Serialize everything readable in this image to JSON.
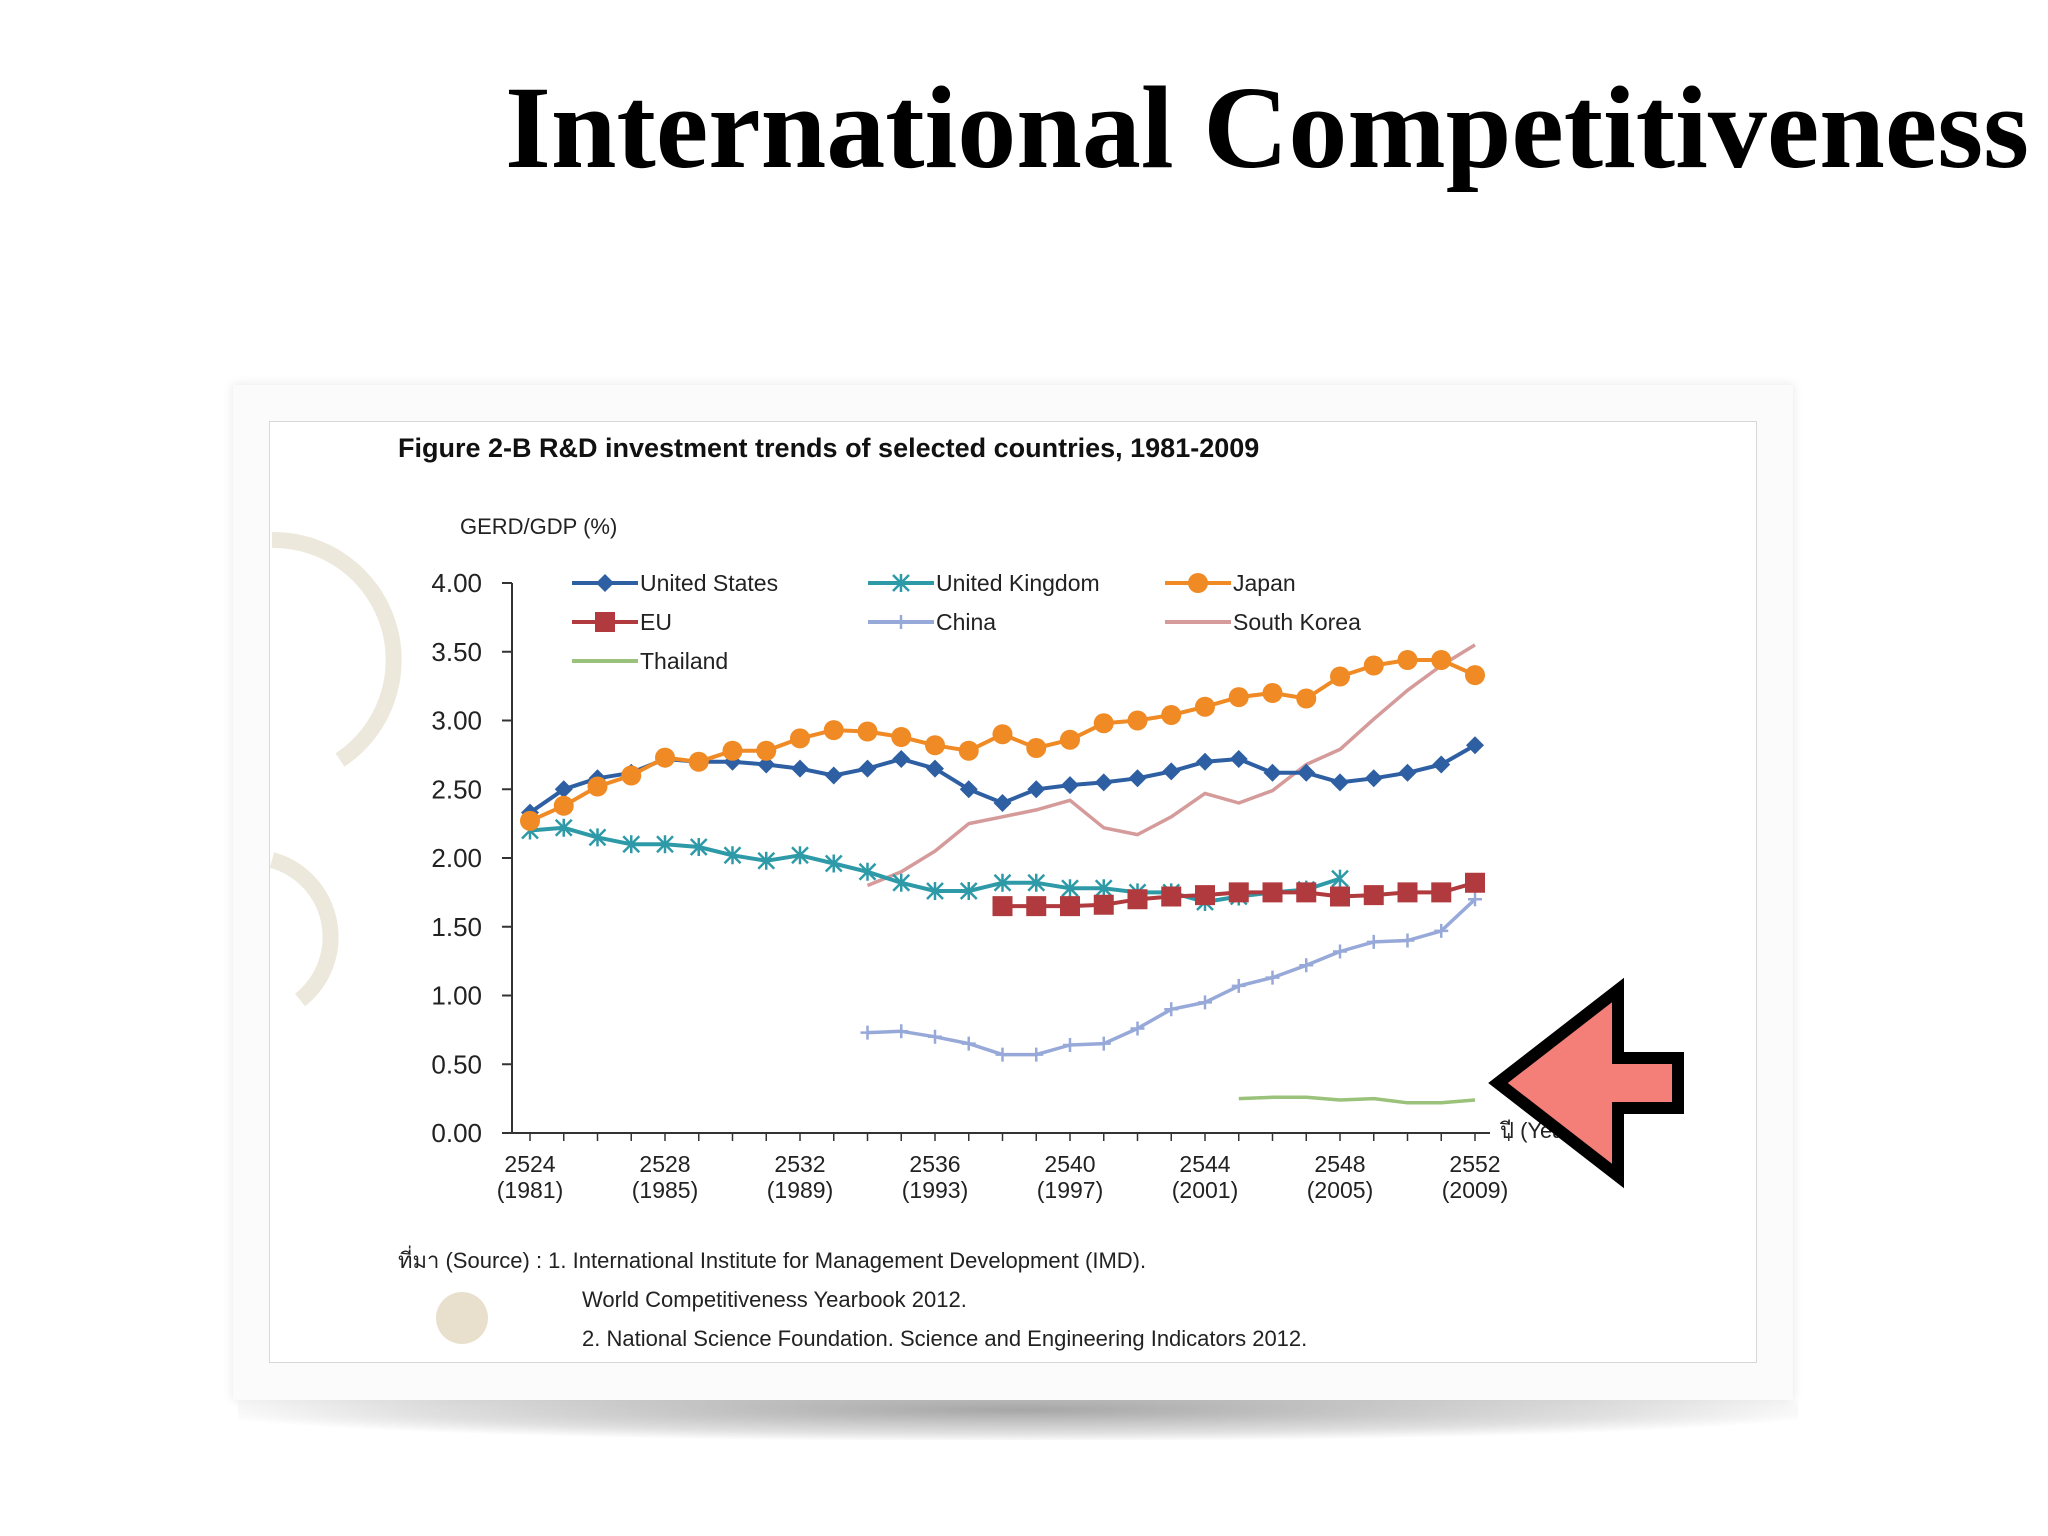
{
  "slide": {
    "title": "International Competitiveness"
  },
  "figure": {
    "caption": "Figure 2-B R&D investment trends of selected countries, 1981-2009",
    "source_lines": [
      "ที่มา (Source) : 1. International Institute for Management Development (IMD).",
      "World Competitiveness Yearbook 2012.",
      "2. National Science Foundation. Science and Engineering Indicators 2012."
    ]
  },
  "chart_data": {
    "type": "line",
    "title": "",
    "xlabel": "ปี (Year)",
    "ylabel": "GERD/GDP (%)",
    "xlim": [
      1981,
      2010
    ],
    "ylim": [
      0,
      4
    ],
    "y_ticks": [
      "0.00",
      "0.50",
      "1.00",
      "1.50",
      "2.00",
      "2.50",
      "3.00",
      "3.50",
      "4.00"
    ],
    "x_ticks": [
      {
        "year": 1981,
        "line1": "2524",
        "line2": "(1981)"
      },
      {
        "year": 1985,
        "line1": "2528",
        "line2": "(1985)"
      },
      {
        "year": 1989,
        "line1": "2532",
        "line2": "(1989)"
      },
      {
        "year": 1993,
        "line1": "2536",
        "line2": "(1993)"
      },
      {
        "year": 1997,
        "line1": "2540",
        "line2": "(1997)"
      },
      {
        "year": 2001,
        "line1": "2544",
        "line2": "(2001)"
      },
      {
        "year": 2005,
        "line1": "2548",
        "line2": "(2005)"
      },
      {
        "year": 2009,
        "line1": "2552",
        "line2": "(2009)"
      }
    ],
    "legend_position": "top-left",
    "grid": false,
    "series": [
      {
        "name": "United States",
        "color": "#2e5fa3",
        "marker": "diamond",
        "x": [
          1981,
          1982,
          1983,
          1984,
          1985,
          1986,
          1987,
          1988,
          1989,
          1990,
          1991,
          1992,
          1993,
          1994,
          1995,
          1996,
          1997,
          1998,
          1999,
          2000,
          2001,
          2002,
          2003,
          2004,
          2005,
          2006,
          2007,
          2008,
          2009
        ],
        "y": [
          2.33,
          2.5,
          2.58,
          2.62,
          2.72,
          2.7,
          2.7,
          2.68,
          2.65,
          2.6,
          2.65,
          2.72,
          2.65,
          2.5,
          2.4,
          2.5,
          2.53,
          2.55,
          2.58,
          2.63,
          2.7,
          2.72,
          2.62,
          2.62,
          2.55,
          2.58,
          2.62,
          2.68,
          2.82
        ]
      },
      {
        "name": "United Kingdom",
        "color": "#2e9aa8",
        "marker": "star",
        "x": [
          1981,
          1982,
          1983,
          1984,
          1985,
          1986,
          1987,
          1988,
          1989,
          1990,
          1991,
          1992,
          1993,
          1994,
          1995,
          1996,
          1997,
          1998,
          1999,
          2000,
          2001,
          2002,
          2003,
          2004,
          2005
        ],
        "y": [
          2.2,
          2.22,
          2.15,
          2.1,
          2.1,
          2.08,
          2.02,
          1.98,
          2.02,
          1.96,
          1.9,
          1.82,
          1.76,
          1.76,
          1.82,
          1.82,
          1.78,
          1.78,
          1.75,
          1.75,
          1.68,
          1.72,
          1.75,
          1.77,
          1.85
        ]
      },
      {
        "name": "Japan",
        "color": "#f08a24",
        "marker": "circle",
        "x": [
          1981,
          1982,
          1983,
          1984,
          1985,
          1986,
          1987,
          1988,
          1989,
          1990,
          1991,
          1992,
          1993,
          1994,
          1995,
          1996,
          1997,
          1998,
          1999,
          2000,
          2001,
          2002,
          2003,
          2004,
          2005,
          2006,
          2007,
          2008,
          2009
        ],
        "y": [
          2.27,
          2.38,
          2.52,
          2.6,
          2.73,
          2.7,
          2.78,
          2.78,
          2.87,
          2.93,
          2.92,
          2.88,
          2.82,
          2.78,
          2.9,
          2.8,
          2.86,
          2.98,
          3.0,
          3.04,
          3.1,
          3.17,
          3.2,
          3.16,
          3.32,
          3.4,
          3.44,
          3.44,
          3.33
        ]
      },
      {
        "name": "EU",
        "color": "#b03a3e",
        "marker": "square",
        "x": [
          1995,
          1996,
          1997,
          1998,
          1999,
          2000,
          2001,
          2002,
          2003,
          2004,
          2005,
          2006,
          2007,
          2008,
          2009
        ],
        "y": [
          1.65,
          1.65,
          1.65,
          1.66,
          1.7,
          1.72,
          1.73,
          1.75,
          1.75,
          1.75,
          1.72,
          1.73,
          1.75,
          1.75,
          1.82
        ]
      },
      {
        "name": "China",
        "color": "#97a9d9",
        "marker": "plus",
        "x": [
          1991,
          1992,
          1993,
          1994,
          1995,
          1996,
          1997,
          1998,
          1999,
          2000,
          2001,
          2002,
          2003,
          2004,
          2005,
          2006,
          2007,
          2008,
          2009
        ],
        "y": [
          0.73,
          0.74,
          0.7,
          0.65,
          0.57,
          0.57,
          0.64,
          0.65,
          0.76,
          0.9,
          0.95,
          1.07,
          1.13,
          1.22,
          1.32,
          1.39,
          1.4,
          1.47,
          1.7
        ]
      },
      {
        "name": "South Korea",
        "color": "#d59a9a",
        "marker": "none",
        "x": [
          1991,
          1992,
          1993,
          1994,
          1995,
          1996,
          1997,
          1998,
          1999,
          2000,
          2001,
          2002,
          2003,
          2004,
          2005,
          2006,
          2007,
          2008,
          2009
        ],
        "y": [
          1.8,
          1.9,
          2.05,
          2.25,
          2.3,
          2.35,
          2.42,
          2.22,
          2.17,
          2.3,
          2.47,
          2.4,
          2.49,
          2.68,
          2.79,
          3.01,
          3.22,
          3.4,
          3.55
        ]
      },
      {
        "name": "Thailand",
        "color": "#9ac27a",
        "marker": "none",
        "x": [
          2002,
          2003,
          2004,
          2005,
          2006,
          2007,
          2008,
          2009
        ],
        "y": [
          0.25,
          0.26,
          0.26,
          0.24,
          0.25,
          0.22,
          0.22,
          0.24
        ]
      }
    ]
  },
  "overlay": {
    "arrow_icon": "left-arrow-icon",
    "arrow_color": "#f47f78"
  }
}
